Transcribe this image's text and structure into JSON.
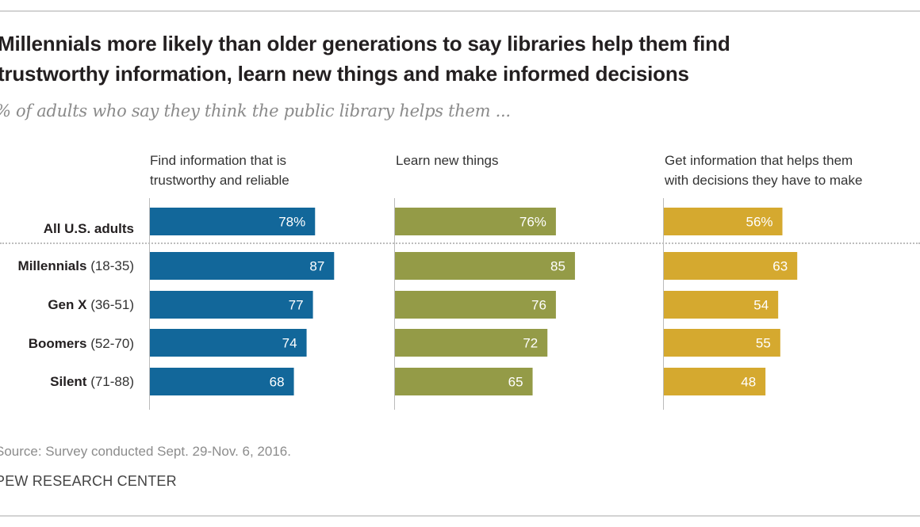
{
  "title_line1": "Millennials more likely than older generations to say libraries help them find",
  "title_line2": "trustworthy information, learn new things and make informed decisions",
  "subtitle": "% of adults who say they think the public library helps them ...",
  "source": "Source: Survey conducted Sept. 29-Nov. 6, 2016.",
  "organization": "PEW RESEARCH CENTER",
  "chart_data": {
    "type": "bar",
    "orientation": "horizontal",
    "title": "Millennials more likely than older generations to say libraries help them find trustworthy information, learn new things and make informed decisions",
    "subtitle": "% of adults who say they think the public library helps them ...",
    "categories": [
      {
        "name": "All U.S. adults",
        "age": ""
      },
      {
        "name": "Millennials",
        "age": "(18-35)"
      },
      {
        "name": "Gen X",
        "age": "(36-51)"
      },
      {
        "name": "Boomers",
        "age": "(52-70)"
      },
      {
        "name": "Silent",
        "age": "(71-88)"
      }
    ],
    "series": [
      {
        "name": "Find information that is trustworthy and reliable",
        "header_lines": [
          "Find information that is",
          "trustworthy and reliable"
        ],
        "color": "#12679a",
        "values": [
          78,
          87,
          77,
          74,
          68
        ],
        "labels": [
          "78%",
          "87",
          "77",
          "74",
          "68"
        ]
      },
      {
        "name": "Learn new things",
        "header_lines": [
          "Learn new things",
          ""
        ],
        "color": "#949b47",
        "values": [
          76,
          85,
          76,
          72,
          65
        ],
        "labels": [
          "76%",
          "85",
          "76",
          "72",
          "65"
        ]
      },
      {
        "name": "Get information that helps them with decisions they have to make",
        "header_lines": [
          "Get information that helps them",
          "with decisions they have to make"
        ],
        "color": "#d5a92f",
        "values": [
          56,
          63,
          54,
          55,
          48
        ],
        "labels": [
          "56%",
          "63",
          "54",
          "55",
          "48"
        ]
      }
    ],
    "xlim": [
      0,
      100
    ],
    "grid": false,
    "legend": "none"
  }
}
